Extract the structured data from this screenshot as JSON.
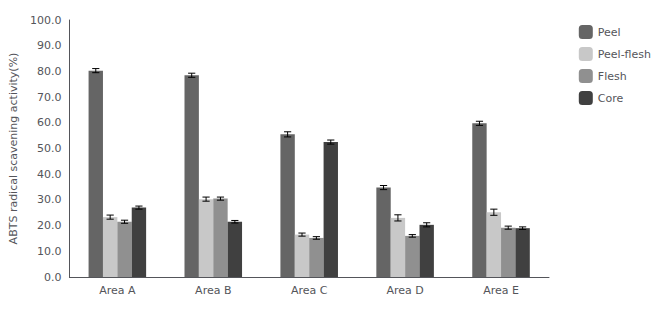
{
  "chart_data": {
    "type": "bar",
    "ylabel": "ABTS radical scavening activity(%)",
    "categories": [
      "Area A",
      "Area B",
      "Area C",
      "Area D",
      "Area E"
    ],
    "series": [
      {
        "name": "Peel",
        "color": "#656565",
        "values": [
          80.3,
          78.5,
          55.5,
          34.8,
          59.8
        ],
        "errors": [
          0.8,
          0.8,
          1.0,
          0.8,
          0.8
        ]
      },
      {
        "name": "Peel-flesh",
        "color": "#c8c8c8",
        "values": [
          23.3,
          30.3,
          16.5,
          23.0,
          25.2
        ],
        "errors": [
          0.8,
          0.8,
          0.6,
          1.2,
          1.2
        ]
      },
      {
        "name": "Flesh",
        "color": "#909090",
        "values": [
          21.5,
          30.5,
          15.2,
          16.0,
          19.2
        ],
        "errors": [
          0.6,
          0.6,
          0.5,
          0.5,
          0.6
        ]
      },
      {
        "name": "Core",
        "color": "#404040",
        "values": [
          27.0,
          21.5,
          52.5,
          20.3,
          19.0
        ],
        "errors": [
          0.6,
          0.5,
          0.8,
          0.8,
          0.5
        ]
      }
    ],
    "ylim": [
      0.0,
      100.0
    ],
    "yticks": [
      {
        "value": 0.0,
        "label": "0.0"
      },
      {
        "value": 10.0,
        "label": "10.0"
      },
      {
        "value": 20.0,
        "label": "20.0"
      },
      {
        "value": 30.0,
        "label": "30.0"
      },
      {
        "value": 40.0,
        "label": "40.0"
      },
      {
        "value": 50.0,
        "label": "50.0"
      },
      {
        "value": 60.0,
        "label": "60.0"
      },
      {
        "value": 70.0,
        "label": "70.0"
      },
      {
        "value": 80.0,
        "label": "80.0"
      },
      {
        "value": 90.0,
        "label": "90.0"
      },
      {
        "value": 100.0,
        "label": "100.0"
      }
    ],
    "grid": false,
    "legend": "right"
  }
}
